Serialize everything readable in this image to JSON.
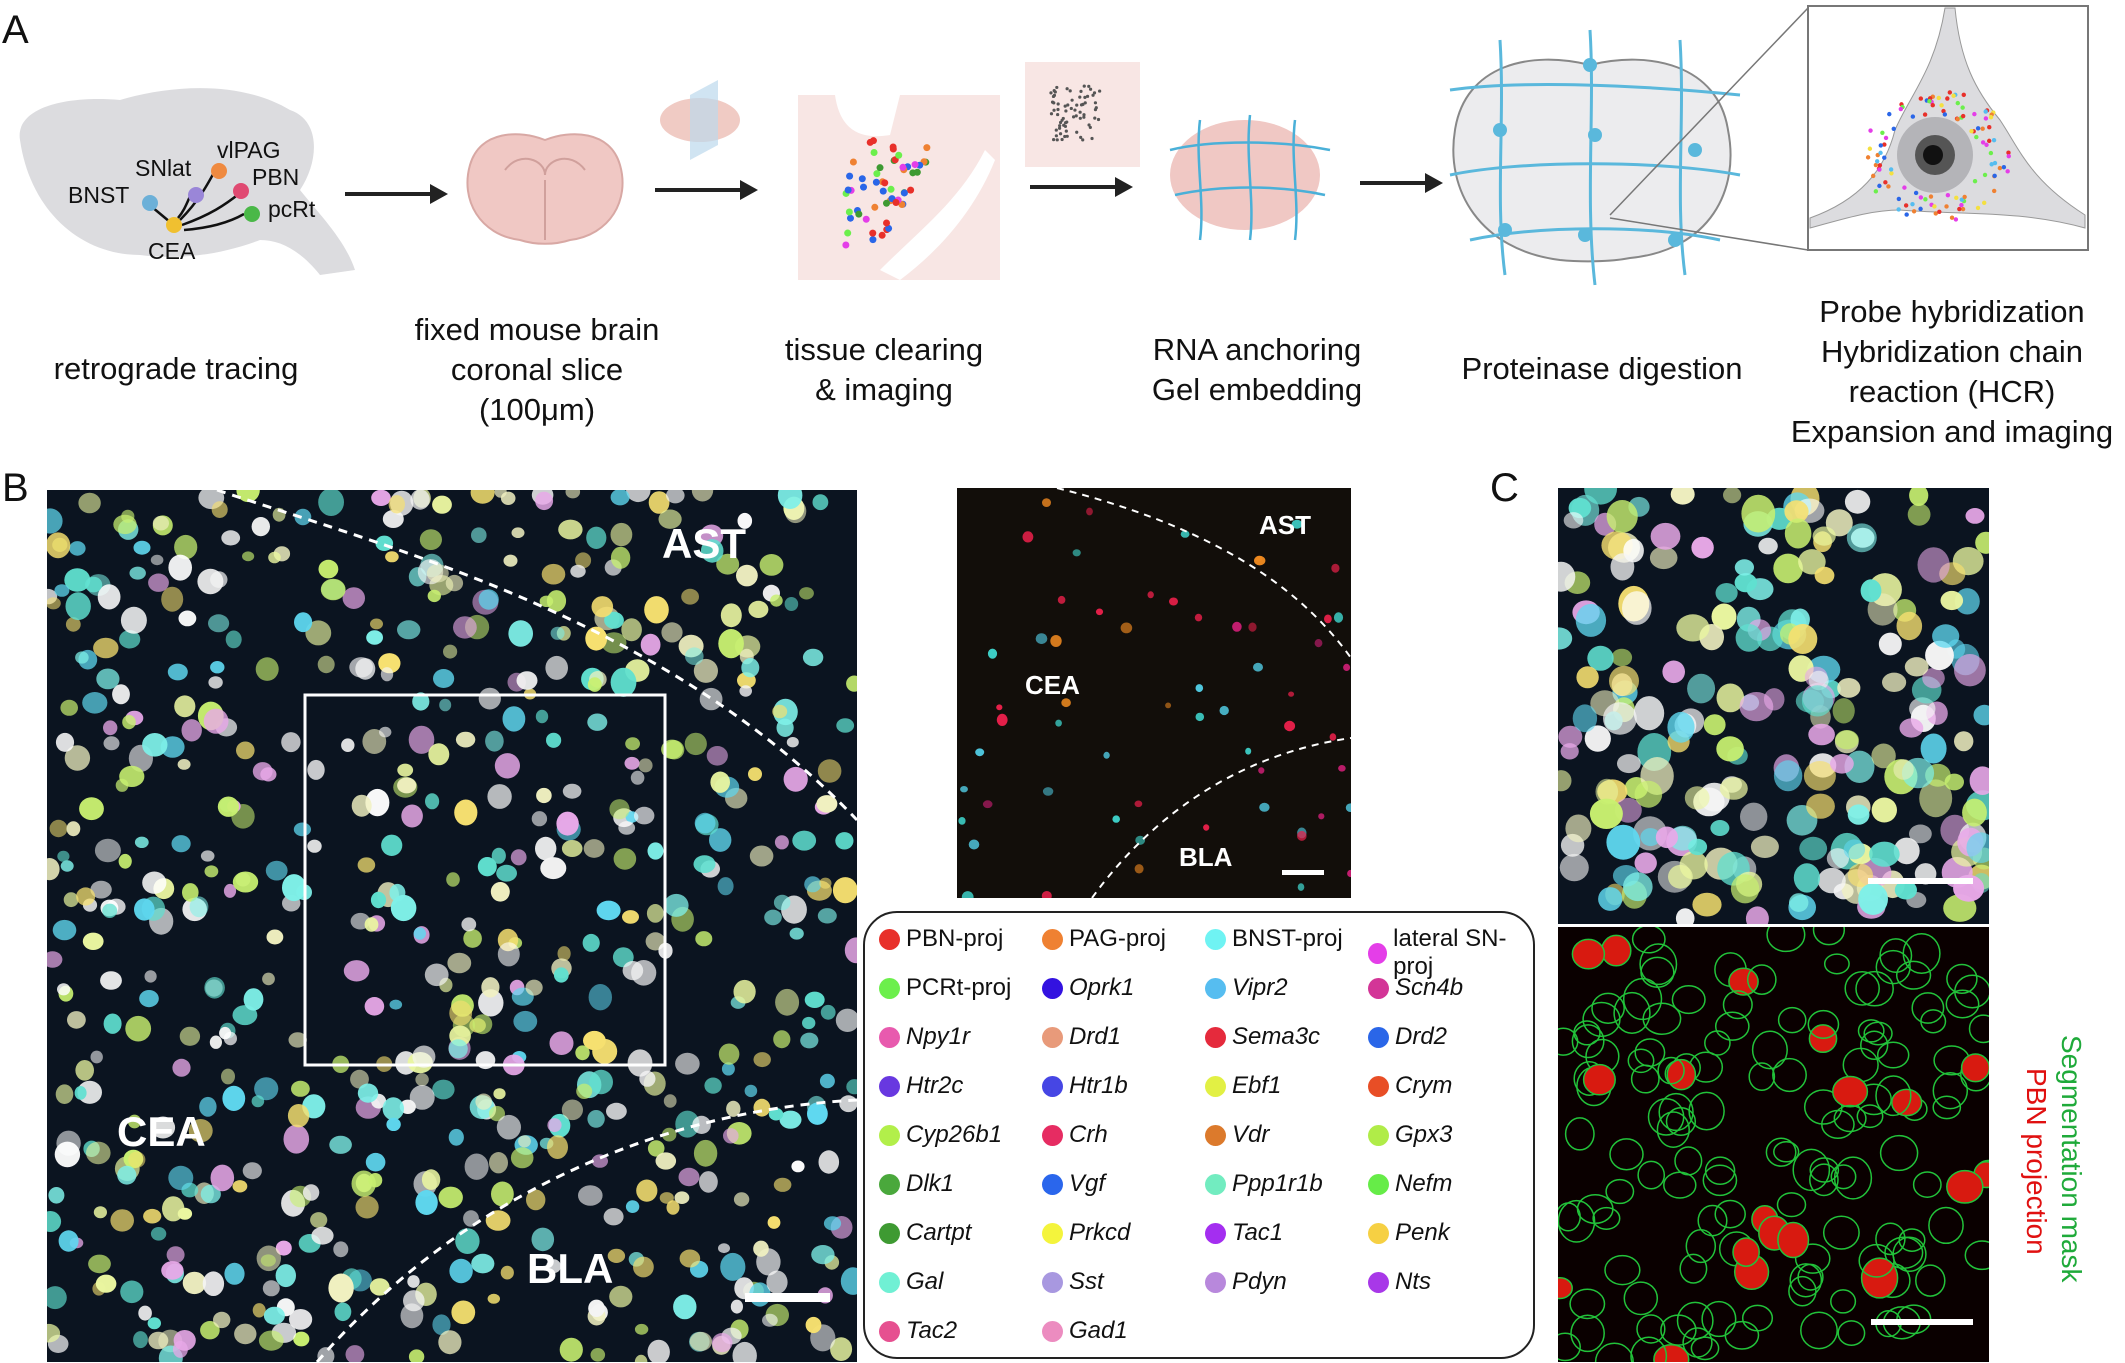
{
  "panels": {
    "a": "A",
    "b": "B",
    "c": "C"
  },
  "schematic": {
    "regions": [
      "BNST",
      "SNlat",
      "vlPAG",
      "PBN",
      "pcRt",
      "CEA"
    ]
  },
  "steps": [
    {
      "lines": [
        "retrograde tracing"
      ]
    },
    {
      "lines": [
        "fixed mouse brain",
        "coronal slice",
        "(100μm)"
      ]
    },
    {
      "lines": [
        "tissue clearing",
        "& imaging"
      ]
    },
    {
      "lines": [
        "RNA anchoring",
        "Gel embedding"
      ]
    },
    {
      "lines": [
        "Proteinase digestion"
      ]
    },
    {
      "lines": [
        "Probe hybridization",
        "Hybridization chain",
        "reaction (HCR)",
        "Expansion and imaging"
      ]
    }
  ],
  "main_image": {
    "labels": {
      "ast": "AST",
      "cea": "CEA",
      "bla": "BLA"
    }
  },
  "inset_image": {
    "labels": {
      "ast": "AST",
      "cea": "CEA",
      "bla": "BLA"
    }
  },
  "panel_c": {
    "seg_label": "Segmentation mask",
    "proj_label": "PBN projection",
    "seg_color": "#1faa3a",
    "proj_color": "#e01010"
  },
  "legend": [
    {
      "label": "PBN-proj",
      "color": "#e8302a",
      "gene": false
    },
    {
      "label": "PAG-proj",
      "color": "#ef8132",
      "gene": false
    },
    {
      "label": "BNST-proj",
      "color": "#6ff3f3",
      "gene": false
    },
    {
      "label": "lateral SN-proj",
      "color": "#e43ee8",
      "gene": false
    },
    {
      "label": "PCRt-proj",
      "color": "#6cef4c",
      "gene": false
    },
    {
      "label": "Oprk1",
      "color": "#3312e0",
      "gene": true
    },
    {
      "label": "Vipr2",
      "color": "#56bdf0",
      "gene": true
    },
    {
      "label": "Scn4b",
      "color": "#d33597",
      "gene": true
    },
    {
      "label": "Npy1r",
      "color": "#e85aae",
      "gene": true
    },
    {
      "label": "Drd1",
      "color": "#e89a7a",
      "gene": true
    },
    {
      "label": "Sema3c",
      "color": "#e52a3c",
      "gene": true
    },
    {
      "label": "Drd2",
      "color": "#2a66e8",
      "gene": true
    },
    {
      "label": "Htr2c",
      "color": "#6838e0",
      "gene": true
    },
    {
      "label": "Htr1b",
      "color": "#4646e4",
      "gene": true
    },
    {
      "label": "Ebf1",
      "color": "#e2f044",
      "gene": true
    },
    {
      "label": "Crym",
      "color": "#e84e26",
      "gene": true
    },
    {
      "label": "Cyp26b1",
      "color": "#b2ef4a",
      "gene": true
    },
    {
      "label": "Crh",
      "color": "#e62c62",
      "gene": true
    },
    {
      "label": "Vdr",
      "color": "#dc7a2c",
      "gene": true
    },
    {
      "label": "Gpx3",
      "color": "#b0ec48",
      "gene": true
    },
    {
      "label": "Dlk1",
      "color": "#4aa83c",
      "gene": true
    },
    {
      "label": "Vgf",
      "color": "#2a66ec",
      "gene": true
    },
    {
      "label": "Ppp1r1b",
      "color": "#72ecc0",
      "gene": true
    },
    {
      "label": "Nefm",
      "color": "#66ec48",
      "gene": true
    },
    {
      "label": "Cartpt",
      "color": "#3e9a32",
      "gene": true
    },
    {
      "label": "Prkcd",
      "color": "#f4f43c",
      "gene": true
    },
    {
      "label": "Tac1",
      "color": "#a42ef0",
      "gene": true
    },
    {
      "label": "Penk",
      "color": "#f6d043",
      "gene": true
    },
    {
      "label": "Gal",
      "color": "#70f0d4",
      "gene": true
    },
    {
      "label": "Sst",
      "color": "#a898e0",
      "gene": true
    },
    {
      "label": "Pdyn",
      "color": "#b888dc",
      "gene": true
    },
    {
      "label": "Nts",
      "color": "#a838e8",
      "gene": true
    },
    {
      "label": "Tac2",
      "color": "#e65090",
      "gene": true
    },
    {
      "label": "Gad1",
      "color": "#ec8cc0",
      "gene": true
    }
  ]
}
